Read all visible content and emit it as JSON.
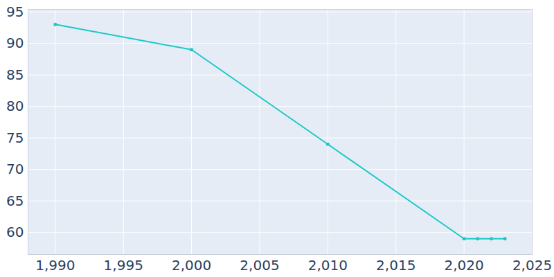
{
  "chart_data": {
    "type": "line",
    "x": [
      1990,
      2000,
      2010,
      2020,
      2021,
      2022,
      2023
    ],
    "values": [
      93,
      89,
      74,
      59,
      59,
      59,
      59
    ],
    "color": "#1cc8c8",
    "marker": "circle",
    "xlim": [
      1988,
      2025
    ],
    "xticks": [
      1990,
      1995,
      2000,
      2005,
      2010,
      2015,
      2020,
      2025
    ],
    "ylim": [
      56.5,
      95.4
    ],
    "yticks": [
      60,
      65,
      70,
      75,
      80,
      85,
      90,
      95
    ],
    "grid": true
  }
}
